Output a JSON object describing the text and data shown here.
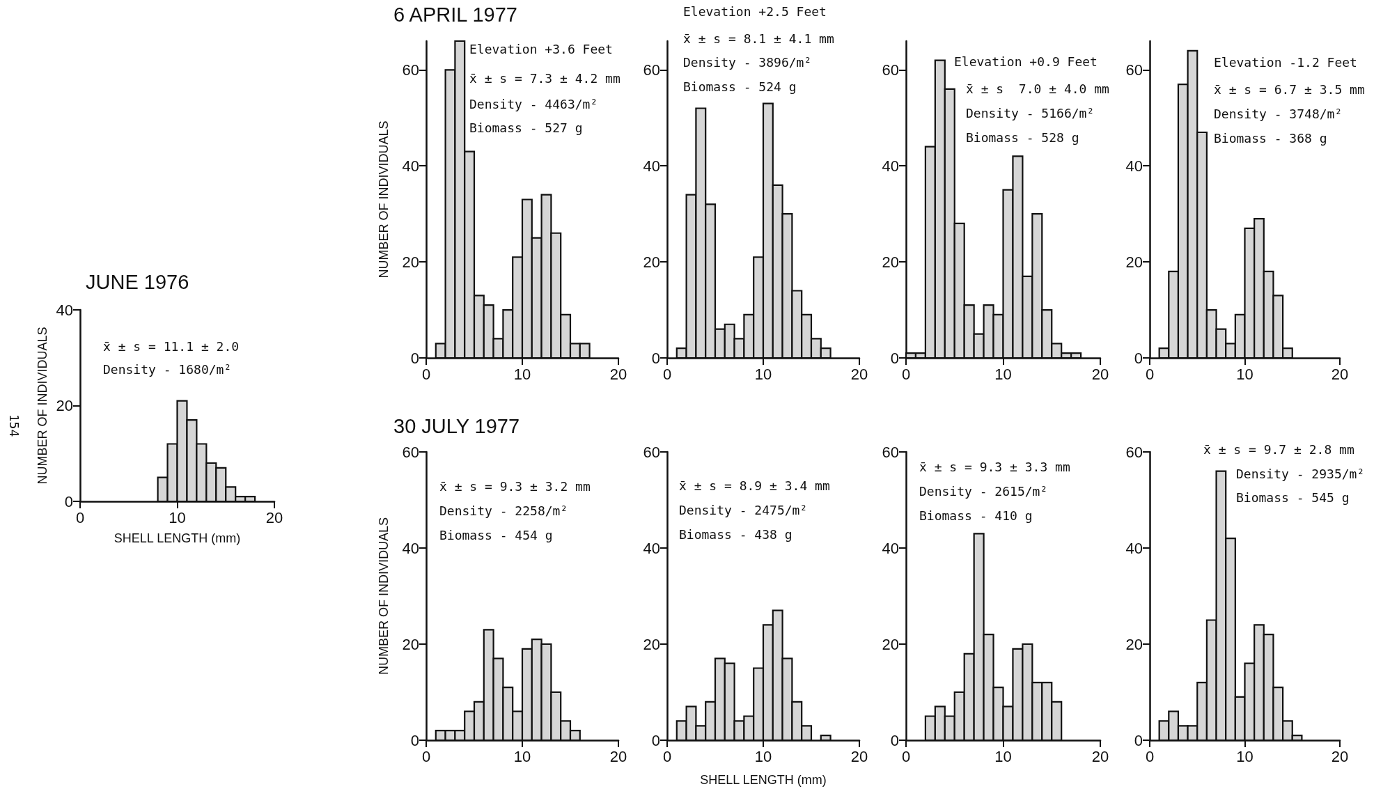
{
  "chart_data": [
    {
      "type": "histogram",
      "title": "JUNE 1976",
      "xlabel": "SHELL LENGTH (mm)",
      "ylabel": "NUMBER OF INDIVIDUALS",
      "bins": [
        8,
        9,
        10,
        11,
        12,
        13,
        14,
        15,
        16,
        17,
        18
      ],
      "values": [
        5,
        12,
        21,
        17,
        12,
        8,
        7,
        3,
        1,
        1
      ],
      "color": "#d6d6d6",
      "xlim": [
        0,
        20
      ],
      "xticks": [
        0,
        10,
        20
      ],
      "ylim": [
        0,
        40
      ],
      "yticks": [
        0,
        20,
        40
      ],
      "annotations": [
        "x̄ ± s = 11.1 ± 2.0",
        "Density - 1680/m²",
        "154"
      ]
    },
    {
      "type": "histogram",
      "title": "6 APRIL 1977",
      "ylabel": "NUMBER OF INDIVIDUALS",
      "bins": [
        1,
        2,
        3,
        4,
        5,
        6,
        7,
        8,
        9,
        10,
        11,
        12,
        13,
        14,
        15,
        16,
        17
      ],
      "values": [
        3,
        60,
        66,
        43,
        13,
        11,
        4,
        10,
        21,
        33,
        25,
        34,
        26,
        9,
        3,
        3
      ],
      "color": "#d6d6d6",
      "xlim": [
        0,
        20
      ],
      "xticks": [
        0,
        10,
        20
      ],
      "ylim": [
        0,
        66
      ],
      "yticks": [
        0,
        20,
        40,
        60
      ],
      "annotations": [
        "Elevation +3.6 Feet",
        "x̄ ± s = 7.3 ± 4.2 mm",
        "Density - 4463/m²",
        "Biomass - 527 g"
      ]
    },
    {
      "type": "histogram",
      "bins": [
        1,
        2,
        3,
        4,
        5,
        6,
        7,
        8,
        9,
        10,
        11,
        12,
        13,
        14,
        15,
        16,
        17
      ],
      "values": [
        2,
        34,
        52,
        32,
        6,
        7,
        4,
        9,
        21,
        53,
        36,
        30,
        14,
        9,
        4,
        2
      ],
      "color": "#d6d6d6",
      "xlim": [
        0,
        20
      ],
      "xticks": [
        0,
        10,
        20
      ],
      "ylim": [
        0,
        66
      ],
      "yticks": [
        0,
        20,
        40,
        60
      ],
      "annotations": [
        "Elevation +2.5 Feet",
        "x̄ ± s = 8.1 ± 4.1 mm",
        "Density - 3896/m²",
        "Biomass - 524 g"
      ]
    },
    {
      "type": "histogram",
      "bins": [
        0,
        1,
        2,
        3,
        4,
        5,
        6,
        7,
        8,
        9,
        10,
        11,
        12,
        13,
        14,
        15,
        16,
        17,
        18
      ],
      "values": [
        1,
        1,
        44,
        62,
        56,
        28,
        11,
        5,
        11,
        9,
        35,
        42,
        17,
        30,
        10,
        3,
        1,
        1
      ],
      "color": "#d6d6d6",
      "xlim": [
        0,
        20
      ],
      "xticks": [
        0,
        10,
        20
      ],
      "ylim": [
        0,
        66
      ],
      "yticks": [
        0,
        20,
        40,
        60
      ],
      "annotations": [
        "Elevation +0.9 Feet",
        "x̄ ± s  7.0 ± 4.0 mm",
        "Density - 5166/m²",
        "Biomass - 528 g"
      ]
    },
    {
      "type": "histogram",
      "bins": [
        1,
        2,
        3,
        4,
        5,
        6,
        7,
        8,
        9,
        10,
        11,
        12,
        13,
        14,
        15
      ],
      "values": [
        2,
        18,
        57,
        64,
        47,
        10,
        6,
        3,
        9,
        27,
        29,
        18,
        13,
        2
      ],
      "color": "#d6d6d6",
      "xlim": [
        0,
        20
      ],
      "xticks": [
        0,
        10,
        20
      ],
      "ylim": [
        0,
        66
      ],
      "yticks": [
        0,
        20,
        40,
        60
      ],
      "annotations": [
        "Elevation -1.2 Feet",
        "x̄ ± s = 6.7 ± 3.5 mm",
        "Density - 3748/m²",
        "Biomass - 368 g"
      ]
    },
    {
      "type": "histogram",
      "title": "30 JULY 1977",
      "ylabel": "NUMBER OF INDIVIDUALS",
      "bins": [
        1,
        2,
        3,
        4,
        5,
        6,
        7,
        8,
        9,
        10,
        11,
        12,
        13,
        14,
        15,
        16
      ],
      "values": [
        2,
        2,
        2,
        6,
        8,
        23,
        17,
        11,
        6,
        19,
        21,
        20,
        10,
        4,
        2
      ],
      "color": "#d6d6d6",
      "xlim": [
        0,
        20
      ],
      "xticks": [
        0,
        10,
        20
      ],
      "ylim": [
        0,
        60
      ],
      "yticks": [
        0,
        20,
        40,
        60
      ],
      "annotations": [
        "x̄ ± s = 9.3 ± 3.2 mm",
        "Density - 2258/m²",
        "Biomass - 454 g"
      ]
    },
    {
      "type": "histogram",
      "xlabel": "SHELL LENGTH (mm)",
      "bins": [
        1,
        2,
        3,
        4,
        5,
        6,
        7,
        8,
        9,
        10,
        11,
        12,
        13,
        14,
        15,
        16,
        17
      ],
      "values": [
        4,
        7,
        3,
        8,
        17,
        16,
        4,
        5,
        15,
        24,
        27,
        17,
        8,
        3,
        null,
        1
      ],
      "color": "#d6d6d6",
      "xlim": [
        0,
        20
      ],
      "xticks": [
        0,
        10,
        20
      ],
      "ylim": [
        0,
        60
      ],
      "yticks": [
        0,
        20,
        40,
        60
      ],
      "annotations": [
        "x̄ ± s = 8.9 ± 3.4 mm",
        "Density - 2475/m²",
        "Biomass - 438 g"
      ]
    },
    {
      "type": "histogram",
      "bins": [
        2,
        3,
        4,
        5,
        6,
        7,
        8,
        9,
        10,
        11,
        12,
        13,
        14,
        15,
        16
      ],
      "values": [
        5,
        7,
        5,
        10,
        18,
        43,
        22,
        11,
        7,
        19,
        20,
        12,
        12,
        8
      ],
      "color": "#d6d6d6",
      "xlim": [
        0,
        20
      ],
      "xticks": [
        0,
        10,
        20
      ],
      "ylim": [
        0,
        60
      ],
      "yticks": [
        0,
        20,
        40,
        60
      ],
      "annotations": [
        "x̄ ± s = 9.3 ± 3.3 mm",
        "Density - 2615/m²",
        "Biomass - 410 g"
      ]
    },
    {
      "type": "histogram",
      "bins": [
        1,
        2,
        3,
        4,
        5,
        6,
        7,
        8,
        9,
        10,
        11,
        12,
        13,
        14,
        15,
        16
      ],
      "values": [
        4,
        6,
        3,
        3,
        12,
        25,
        56,
        42,
        9,
        16,
        24,
        22,
        11,
        4,
        1
      ],
      "color": "#d6d6d6",
      "xlim": [
        0,
        20
      ],
      "xticks": [
        0,
        10,
        20
      ],
      "ylim": [
        0,
        60
      ],
      "yticks": [
        0,
        20,
        40,
        60
      ],
      "annotations": [
        "x̄ ± s = 9.7 ± 2.8 mm",
        "Density - 2935/m²",
        "Biomass - 545 g"
      ]
    }
  ]
}
